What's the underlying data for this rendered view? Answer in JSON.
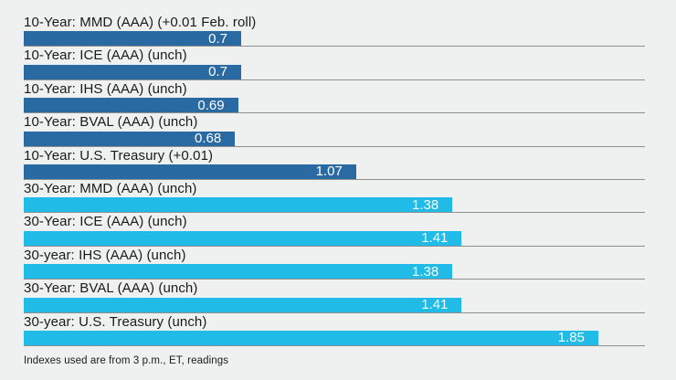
{
  "colors": {
    "background": "#eff1f0",
    "bar_10_year": "#2a6aa3",
    "bar_30_year": "#20bbe7",
    "baseline": "#8e8e8e",
    "label_text": "#1a1a1a",
    "value_text": "#ffffff"
  },
  "chart_data": {
    "type": "bar",
    "orientation": "horizontal",
    "title": "",
    "axis_max": 2.0,
    "grid": "per-row baseline to axis max",
    "legend": "none",
    "footnote": "Indexes used are from 3 p.m., ET, readings",
    "categories": [
      "10-Year: MMD (AAA) (+0.01 Feb. roll)",
      "10-Year: ICE (AAA) (unch)",
      "10-Year: IHS (AAA) (unch)",
      "10-Year: BVAL (AAA) (unch)",
      "10-Year: U.S. Treasury (+0.01)",
      "30-Year: MMD (AAA) (unch)",
      "30-Year: ICE (AAA) (unch)",
      "30-year: IHS (AAA) (unch)",
      "30-Year: BVAL (AAA) (unch)",
      "30-year: U.S. Treasury (unch)"
    ],
    "values": [
      0.7,
      0.7,
      0.69,
      0.68,
      1.07,
      1.38,
      1.41,
      1.38,
      1.41,
      1.85
    ],
    "rows": [
      {
        "label": "10-Year: MMD (AAA) (+0.01 Feb. roll)",
        "value": 0.7,
        "display": "0.7",
        "group": "10-year"
      },
      {
        "label": "10-Year: ICE (AAA) (unch)",
        "value": 0.7,
        "display": "0.7",
        "group": "10-year"
      },
      {
        "label": "10-Year: IHS (AAA) (unch)",
        "value": 0.69,
        "display": "0.69",
        "group": "10-year"
      },
      {
        "label": "10-Year: BVAL (AAA) (unch)",
        "value": 0.68,
        "display": "0.68",
        "group": "10-year"
      },
      {
        "label": "10-Year: U.S. Treasury (+0.01)",
        "value": 1.07,
        "display": "1.07",
        "group": "10-year"
      },
      {
        "label": "30-Year: MMD (AAA) (unch)",
        "value": 1.38,
        "display": "1.38",
        "group": "30-year"
      },
      {
        "label": "30-Year: ICE (AAA) (unch)",
        "value": 1.41,
        "display": "1.41",
        "group": "30-year"
      },
      {
        "label": "30-year: IHS (AAA) (unch)",
        "value": 1.38,
        "display": "1.38",
        "group": "30-year"
      },
      {
        "label": "30-Year: BVAL (AAA) (unch)",
        "value": 1.41,
        "display": "1.41",
        "group": "30-year"
      },
      {
        "label": "30-year: U.S. Treasury (unch)",
        "value": 1.85,
        "display": "1.85",
        "group": "30-year"
      }
    ]
  }
}
